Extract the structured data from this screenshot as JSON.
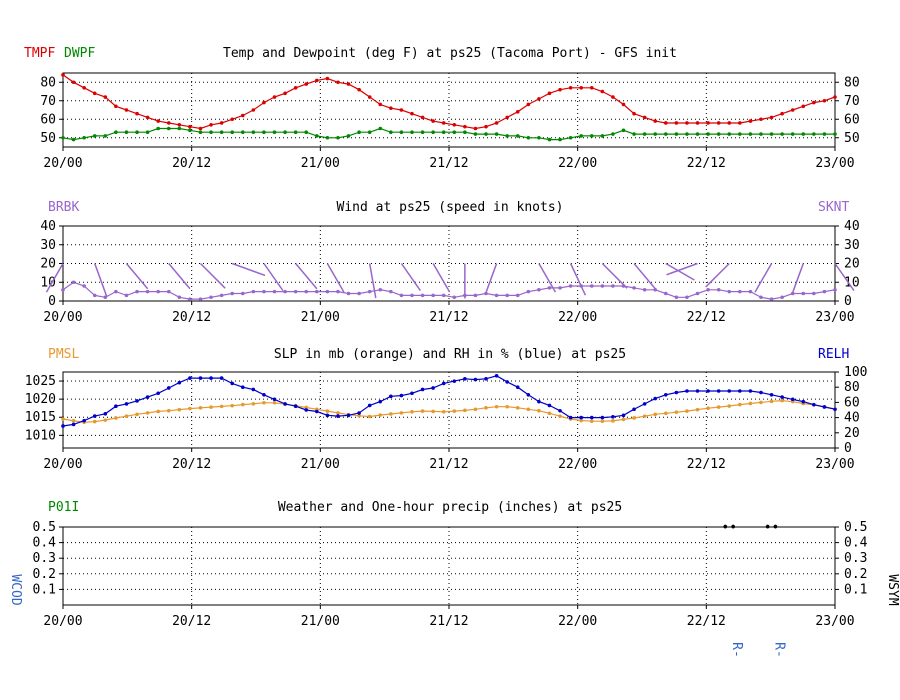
{
  "chart_data": [
    {
      "type": "line",
      "id": "temp",
      "title": "Temp and Dewpoint (deg F) at ps25  (Tacoma Port) - GFS init",
      "legend": [
        {
          "label": "TMPF",
          "color": "#dd0000"
        },
        {
          "label": "DWPF",
          "color": "#008800"
        }
      ],
      "ylim": [
        45,
        85
      ],
      "yticks": [
        50,
        60,
        70,
        80
      ],
      "right_yticks": [
        50,
        60,
        70,
        80
      ],
      "x_ticks": [
        "20/00",
        "20/12",
        "21/00",
        "21/12",
        "22/00",
        "22/12",
        "23/00"
      ],
      "series": [
        {
          "name": "TMPF",
          "color": "#dd0000",
          "values": [
            84,
            80,
            77,
            74,
            72,
            67,
            65,
            63,
            61,
            59,
            58,
            57,
            56,
            55,
            57,
            58,
            60,
            62,
            65,
            69,
            72,
            74,
            77,
            79,
            81,
            82,
            80,
            79,
            76,
            72,
            68,
            66,
            65,
            63,
            61,
            59,
            58,
            57,
            56,
            55,
            56,
            58,
            61,
            64,
            68,
            71,
            74,
            76,
            77,
            77,
            77,
            75,
            72,
            68,
            63,
            61,
            59,
            58,
            58,
            58,
            58,
            58,
            58,
            58,
            58,
            59,
            60,
            61,
            63,
            65,
            67,
            69,
            70,
            72
          ]
        },
        {
          "name": "DWPF",
          "color": "#008800",
          "values": [
            50,
            49,
            50,
            51,
            51,
            53,
            53,
            53,
            53,
            55,
            55,
            55,
            54,
            53,
            53,
            53,
            53,
            53,
            53,
            53,
            53,
            53,
            53,
            53,
            51,
            50,
            50,
            51,
            53,
            53,
            55,
            53,
            53,
            53,
            53,
            53,
            53,
            53,
            53,
            52,
            52,
            52,
            51,
            51,
            50,
            50,
            49,
            49,
            50,
            51,
            51,
            51,
            52,
            54,
            52,
            52,
            52,
            52,
            52,
            52,
            52,
            52,
            52,
            52,
            52,
            52,
            52,
            52,
            52,
            52,
            52,
            52,
            52,
            52
          ]
        }
      ]
    },
    {
      "type": "line",
      "id": "wind",
      "title": "Wind at  ps25  (speed in knots)",
      "left_label": "BRBK",
      "right_label": "SKNT",
      "ylim": [
        0,
        40
      ],
      "yticks": [
        0,
        10,
        20,
        30,
        40
      ],
      "right_yticks": [
        0,
        10,
        20,
        30,
        40
      ],
      "x_ticks": [
        "20/00",
        "20/12",
        "21/00",
        "21/12",
        "22/00",
        "22/12",
        "23/00"
      ],
      "series": [
        {
          "name": "SKNT",
          "color": "#9966cc",
          "values": [
            6,
            10,
            8,
            3,
            2,
            5,
            3,
            5,
            5,
            5,
            5,
            2,
            1,
            1,
            2,
            3,
            4,
            4,
            5,
            5,
            5,
            5,
            5,
            5,
            5,
            5,
            5,
            4,
            4,
            5,
            6,
            5,
            3,
            3,
            3,
            3,
            3,
            2,
            3,
            3,
            4,
            3,
            3,
            3,
            5,
            6,
            7,
            7,
            8,
            8,
            8,
            8,
            8,
            8,
            7,
            6,
            6,
            4,
            2,
            2,
            4,
            6,
            6,
            5,
            5,
            5,
            2,
            1,
            2,
            4,
            4,
            4,
            5,
            6
          ]
        },
        {
          "name": "BRBK",
          "color": "#9966cc",
          "barbs": [
            {
              "x": 0,
              "dir": 210,
              "spd": 6
            },
            {
              "x": 3,
              "dir": 160,
              "spd": 10
            },
            {
              "x": 6,
              "dir": 140,
              "spd": 6
            },
            {
              "x": 10,
              "dir": 140,
              "spd": 6
            },
            {
              "x": 13,
              "dir": 135,
              "spd": 8
            },
            {
              "x": 16,
              "dir": 110,
              "spd": 9
            },
            {
              "x": 19,
              "dir": 145,
              "spd": 6
            },
            {
              "x": 22,
              "dir": 140,
              "spd": 5
            },
            {
              "x": 25,
              "dir": 150,
              "spd": 6
            },
            {
              "x": 29,
              "dir": 170,
              "spd": 10
            },
            {
              "x": 32,
              "dir": 145,
              "spd": 6
            },
            {
              "x": 35,
              "dir": 150,
              "spd": 6
            },
            {
              "x": 38,
              "dir": 180,
              "spd": 8
            },
            {
              "x": 41,
              "dir": 200,
              "spd": 6
            },
            {
              "x": 45,
              "dir": 150,
              "spd": 7
            },
            {
              "x": 48,
              "dir": 155,
              "spd": 8
            },
            {
              "x": 51,
              "dir": 135,
              "spd": 8
            },
            {
              "x": 54,
              "dir": 140,
              "spd": 8
            },
            {
              "x": 57,
              "dir": 120,
              "spd": 7
            },
            {
              "x": 60,
              "dir": 250,
              "spd": 6
            },
            {
              "x": 63,
              "dir": 225,
              "spd": 6
            },
            {
              "x": 67,
              "dir": 210,
              "spd": 6
            },
            {
              "x": 70,
              "dir": 200,
              "spd": 7
            },
            {
              "x": 73,
              "dir": 145,
              "spd": 6
            }
          ]
        }
      ]
    },
    {
      "type": "line",
      "id": "slp",
      "title": "SLP in mb (orange) and RH in % (blue) at  ps25",
      "left_label": "PMSL",
      "right_label": "RELH",
      "ylim": [
        1006.5,
        1027.5
      ],
      "yticks": [
        1010,
        1015,
        1020,
        1025
      ],
      "right_ylim": [
        0,
        100
      ],
      "right_yticks": [
        0,
        20,
        40,
        60,
        80,
        100
      ],
      "x_ticks": [
        "20/00",
        "20/12",
        "21/00",
        "21/12",
        "22/00",
        "22/12",
        "23/00"
      ],
      "series": [
        {
          "name": "PMSL",
          "color": "#e69a2e",
          "axis": "left",
          "values": [
            1014.5,
            1014,
            1013.6,
            1013.8,
            1014.2,
            1014.8,
            1015.3,
            1015.8,
            1016.2,
            1016.6,
            1016.8,
            1017.1,
            1017.4,
            1017.6,
            1017.8,
            1018,
            1018.2,
            1018.5,
            1018.7,
            1019,
            1019,
            1018.6,
            1018.2,
            1017.7,
            1017.2,
            1016.7,
            1016.2,
            1015.7,
            1015.4,
            1015.2,
            1015.6,
            1015.9,
            1016.2,
            1016.5,
            1016.7,
            1016.6,
            1016.5,
            1016.7,
            1016.9,
            1017.2,
            1017.6,
            1017.9,
            1017.9,
            1017.6,
            1017.2,
            1016.8,
            1016.1,
            1015.3,
            1014.5,
            1014.1,
            1013.9,
            1013.9,
            1014,
            1014.4,
            1014.8,
            1015.3,
            1015.8,
            1016.1,
            1016.4,
            1016.7,
            1017.1,
            1017.5,
            1017.8,
            1018.1,
            1018.5,
            1018.8,
            1019.1,
            1019.4,
            1019.6,
            1019.3,
            1018.8,
            1018.4,
            1017.9,
            1017.3
          ]
        },
        {
          "name": "RELH",
          "color": "#0000cc",
          "axis": "right",
          "values": [
            29,
            31,
            36,
            42,
            45,
            55,
            58,
            62,
            67,
            72,
            79,
            86,
            92,
            92,
            92,
            92,
            85,
            80,
            77,
            70,
            64,
            58,
            55,
            50,
            48,
            43,
            42,
            43,
            46,
            56,
            61,
            68,
            69,
            72,
            77,
            79,
            85,
            88,
            91,
            90,
            91,
            95,
            87,
            80,
            70,
            61,
            56,
            49,
            40,
            40,
            40,
            40,
            41,
            43,
            51,
            58,
            65,
            70,
            73,
            75,
            75,
            75,
            75,
            75,
            75,
            75,
            73,
            70,
            67,
            64,
            61,
            57,
            54,
            51
          ]
        }
      ]
    },
    {
      "type": "line",
      "id": "precip",
      "title": "Weather and One-hour precip (inches) at  ps25",
      "left_label": "P01I",
      "left_axis_label": "WCOD",
      "right_axis_label": "WSYM",
      "ylim": [
        0,
        0.5
      ],
      "yticks": [
        0.1,
        0.2,
        0.3,
        0.4,
        0.5
      ],
      "right_yticks": [
        0.1,
        0.2,
        0.3,
        0.4,
        0.5
      ],
      "x_ticks": [
        "20/00",
        "20/12",
        "21/00",
        "21/12",
        "22/00",
        "22/12",
        "23/00"
      ],
      "weather_symbols": [
        {
          "x": 63,
          "symbol": "••"
        },
        {
          "x": 67,
          "symbol": "••"
        }
      ],
      "weather_codes": [
        {
          "x": 63,
          "code": "R-"
        },
        {
          "x": 67,
          "code": "R-"
        }
      ]
    }
  ]
}
